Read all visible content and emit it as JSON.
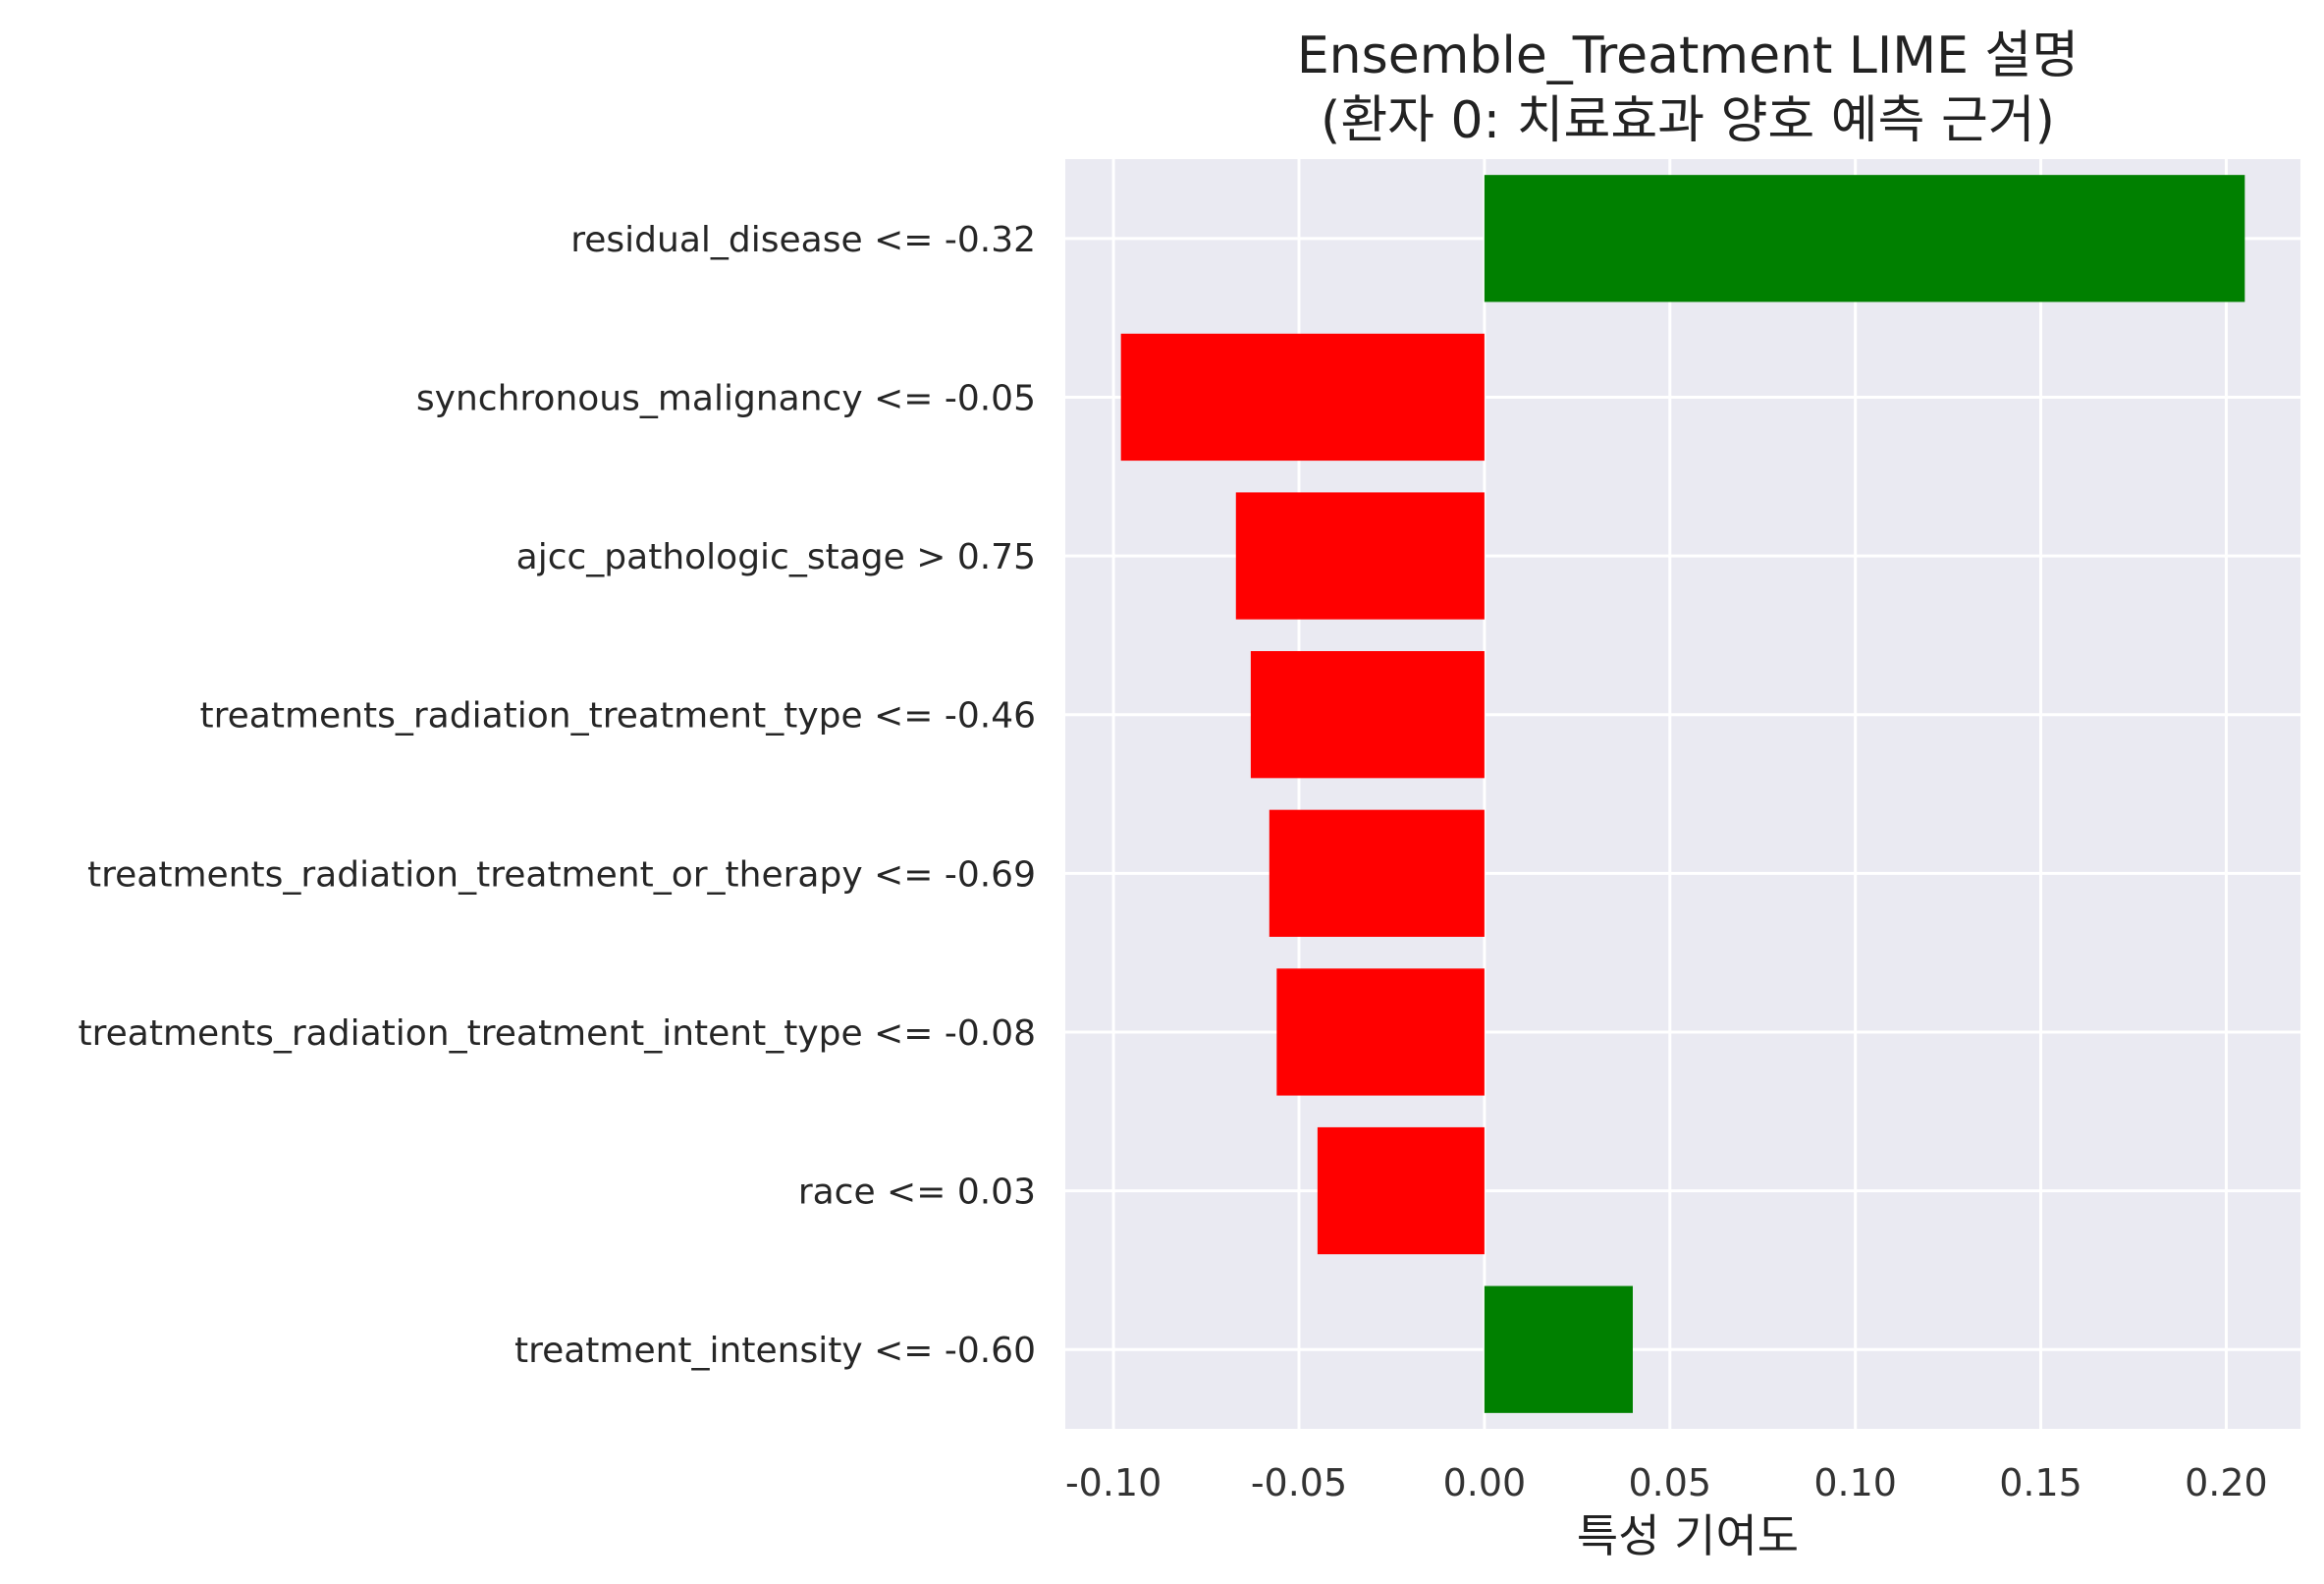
{
  "chart_data": {
    "type": "bar",
    "orientation": "horizontal",
    "title": "Ensemble_Treatment LIME 설명",
    "subtitle": "(환자 0: 치료효과 양호 예측 근거)",
    "xlabel": "특성 기여도",
    "ylabel": "",
    "xlim": [
      -0.113,
      0.22
    ],
    "xticks": [
      -0.1,
      -0.05,
      0.0,
      0.05,
      0.1,
      0.15,
      0.2
    ],
    "xtick_labels": [
      "-0.10",
      "-0.05",
      "0.00",
      "0.05",
      "0.10",
      "0.15",
      "0.20"
    ],
    "grid": true,
    "positive_color": "#008000",
    "negative_color": "#ff0000",
    "background_color": "#eaeaf2",
    "categories": [
      "residual_disease <= -0.32",
      "synchronous_malignancy <= -0.05",
      "ajcc_pathologic_stage > 0.75",
      "treatments_radiation_treatment_type <= -0.46",
      "treatments_radiation_treatment_or_therapy <= -0.69",
      "treatments_radiation_treatment_intent_type <= -0.08",
      "race <= 0.03",
      "treatment_intensity <= -0.60"
    ],
    "values": [
      0.205,
      -0.098,
      -0.067,
      -0.063,
      -0.058,
      -0.056,
      -0.045,
      0.04
    ]
  }
}
